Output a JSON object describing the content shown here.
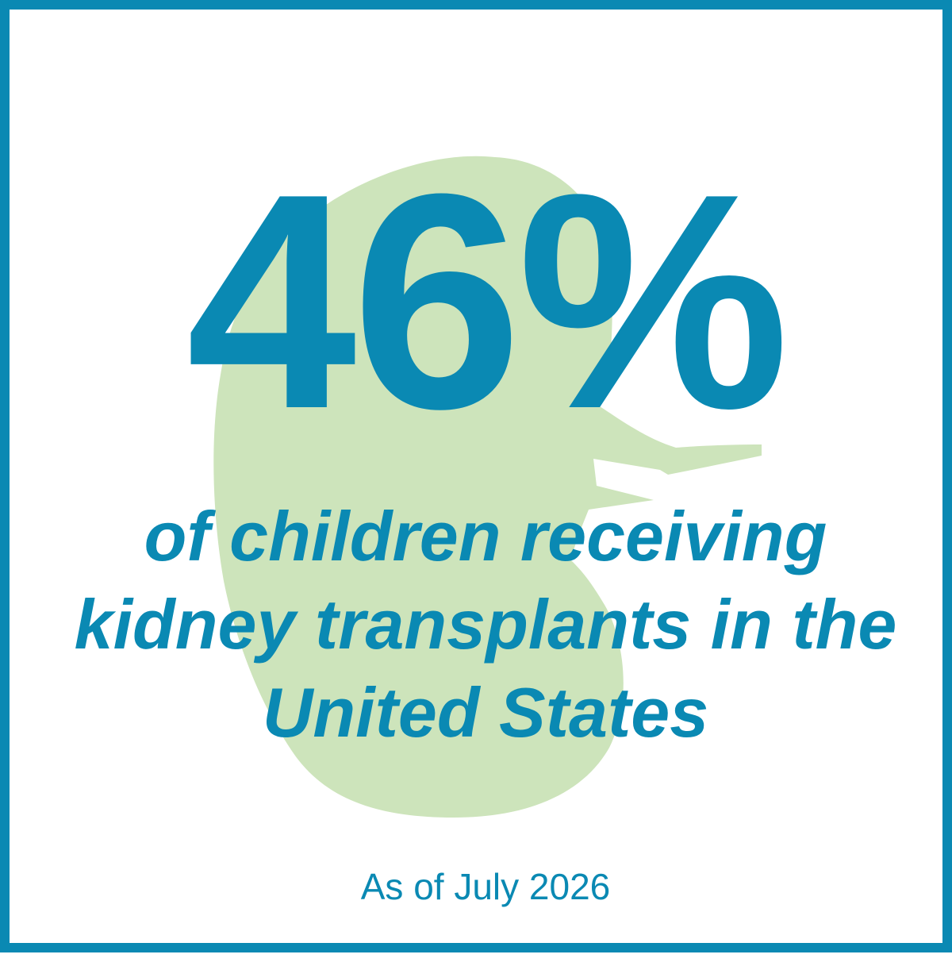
{
  "stat": {
    "value": "46%"
  },
  "caption": {
    "lines": [
      "of children receiving",
      "kidney transplants in the",
      "United States"
    ]
  },
  "footnote": "As of July 2026",
  "graphic": {
    "icon": "kidney-icon"
  },
  "colors": {
    "brand_blue": "#0a89b3",
    "kidney_green": "#cde4bb",
    "background": "#ffffff"
  }
}
